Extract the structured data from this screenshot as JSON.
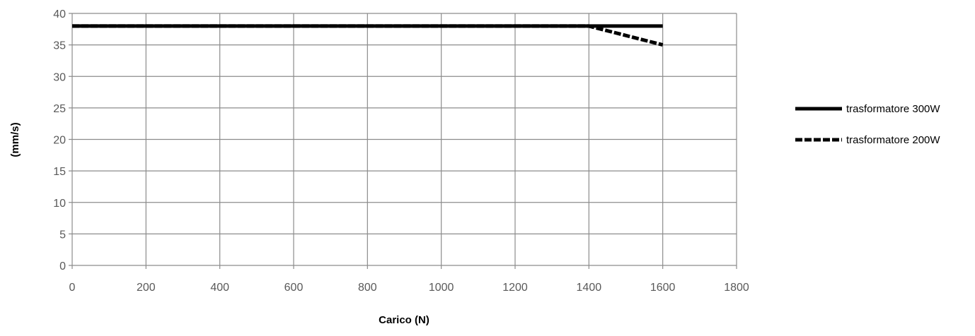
{
  "chart_data": {
    "type": "line",
    "title": "",
    "xlabel": "Carico (N)",
    "ylabel": "(mm/s)",
    "xlim": [
      0,
      1800
    ],
    "ylim": [
      0,
      40
    ],
    "x_ticks": [
      0,
      200,
      400,
      600,
      800,
      1000,
      1200,
      1400,
      1600,
      1800
    ],
    "y_ticks": [
      0,
      5,
      10,
      15,
      20,
      25,
      30,
      35,
      40
    ],
    "grid": true,
    "legend_position": "right",
    "series": [
      {
        "name": "trasformatore 300W",
        "style": "solid",
        "color": "#000000",
        "x": [
          0,
          200,
          400,
          600,
          800,
          1000,
          1200,
          1400,
          1600
        ],
        "y": [
          38,
          38,
          38,
          38,
          38,
          38,
          38,
          38,
          38
        ]
      },
      {
        "name": "trasformatore 200W",
        "style": "dashed",
        "color": "#000000",
        "x": [
          0,
          200,
          400,
          600,
          800,
          1000,
          1200,
          1400,
          1600
        ],
        "y": [
          38,
          38,
          38,
          38,
          38,
          38,
          38,
          38,
          35
        ]
      }
    ]
  }
}
